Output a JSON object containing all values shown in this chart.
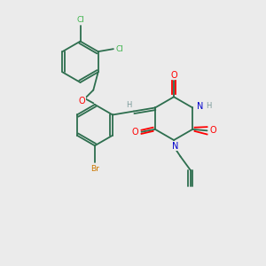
{
  "bg_color": "#ebebeb",
  "bond_color": "#2d6e4e",
  "atom_colors": {
    "Cl": "#3cb34a",
    "O": "#ff0000",
    "N": "#0000cc",
    "Br": "#cc7700",
    "H": "#7a9a9a",
    "C": "#2d6e4e"
  },
  "figsize": [
    3.0,
    3.0
  ],
  "dpi": 100
}
